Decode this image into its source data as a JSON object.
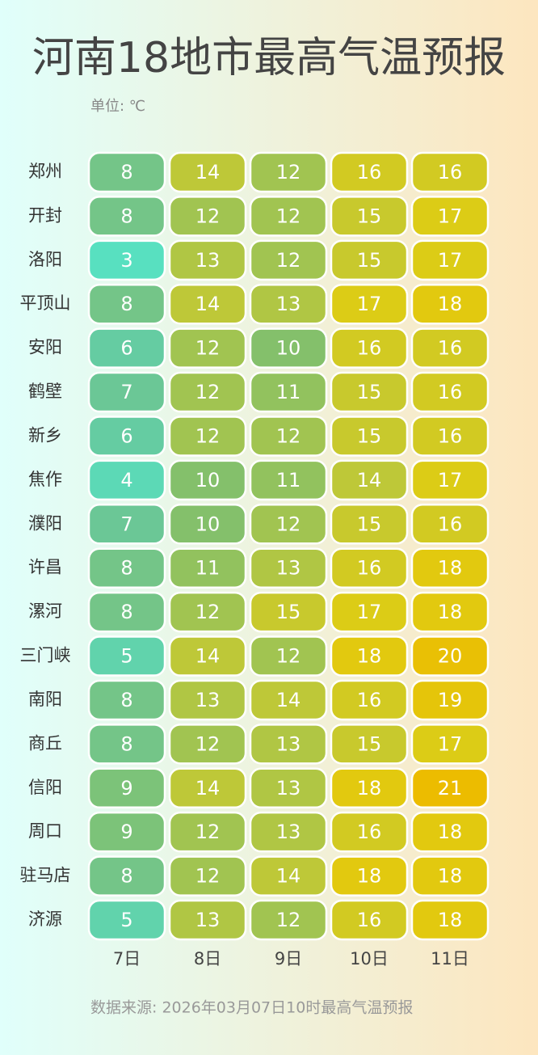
{
  "chart_data": {
    "type": "heatmap",
    "title": "河南18地市最高气温预报",
    "subtitle": "单位: ℃",
    "rows": [
      "郑州",
      "开封",
      "洛阳",
      "平顶山",
      "安阳",
      "鹤壁",
      "新乡",
      "焦作",
      "濮阳",
      "许昌",
      "漯河",
      "三门峡",
      "南阳",
      "商丘",
      "信阳",
      "周口",
      "驻马店",
      "济源"
    ],
    "columns": [
      "7日",
      "8日",
      "9日",
      "10日",
      "11日"
    ],
    "values": [
      [
        8,
        14,
        12,
        16,
        16
      ],
      [
        8,
        12,
        12,
        15,
        17
      ],
      [
        3,
        13,
        12,
        15,
        17
      ],
      [
        8,
        14,
        13,
        17,
        18
      ],
      [
        6,
        12,
        10,
        16,
        16
      ],
      [
        7,
        12,
        11,
        15,
        16
      ],
      [
        6,
        12,
        12,
        15,
        16
      ],
      [
        4,
        10,
        11,
        14,
        17
      ],
      [
        7,
        10,
        12,
        15,
        16
      ],
      [
        8,
        11,
        13,
        16,
        18
      ],
      [
        8,
        12,
        15,
        17,
        18
      ],
      [
        5,
        14,
        12,
        18,
        20
      ],
      [
        8,
        13,
        14,
        16,
        19
      ],
      [
        8,
        12,
        13,
        15,
        17
      ],
      [
        9,
        14,
        13,
        18,
        21
      ],
      [
        9,
        12,
        13,
        16,
        18
      ],
      [
        8,
        12,
        14,
        18,
        18
      ],
      [
        5,
        13,
        12,
        16,
        18
      ]
    ],
    "colorscale": [
      "#58e0c0",
      "#68c89c",
      "#86c068",
      "#bcc83a",
      "#e0cc12",
      "#ecbc00"
    ],
    "source": "数据来源: 2026年03月07日10时最高气温预报"
  }
}
